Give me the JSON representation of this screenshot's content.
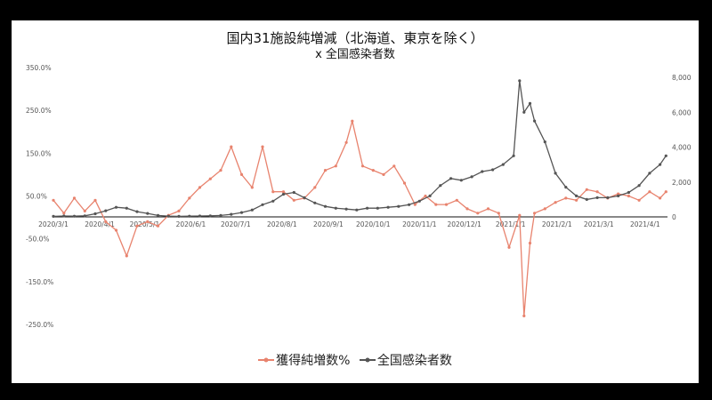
{
  "colors": {
    "series1": "#E8836E",
    "series2": "#555555",
    "background": "#000000",
    "panel": "#ffffff"
  },
  "chart_data": {
    "type": "line",
    "title": "国内31施設純増減（北海道、東京を除く）",
    "subtitle": "x 全国感染者数",
    "x_ticks": [
      "2020/3/1",
      "2020/4/1",
      "2020/5/1",
      "2020/6/1",
      "2020/7/1",
      "2020/8/1",
      "2020/9/1",
      "2020/10/1",
      "2020/11/1",
      "2020/12/1",
      "2021/1/1",
      "2021/2/1",
      "2021/3/1",
      "2021/4/1"
    ],
    "y_left_ticks": [
      "350.0%",
      "250.0%",
      "150.0%",
      "50.0%",
      "-50.0%",
      "-150.0%",
      "-250.0%"
    ],
    "y_right_ticks": [
      "8,000",
      "6,000",
      "4,000",
      "2,000",
      "0"
    ],
    "y_left_range": [
      -250,
      350
    ],
    "y_right_range": [
      0,
      8000
    ],
    "grid": false,
    "legend_position": "bottom",
    "series": [
      {
        "name": "獲得純増数%",
        "axis": "left",
        "points": [
          [
            "2020/3/1",
            40
          ],
          [
            "2020/3/8",
            10
          ],
          [
            "2020/3/15",
            45
          ],
          [
            "2020/3/22",
            15
          ],
          [
            "2020/3/29",
            40
          ],
          [
            "2020/4/5",
            -10
          ],
          [
            "2020/4/12",
            -30
          ],
          [
            "2020/4/19",
            -90
          ],
          [
            "2020/4/26",
            -20
          ],
          [
            "2020/5/3",
            -10
          ],
          [
            "2020/5/10",
            -20
          ],
          [
            "2020/5/17",
            5
          ],
          [
            "2020/5/24",
            15
          ],
          [
            "2020/5/31",
            45
          ],
          [
            "2020/6/7",
            70
          ],
          [
            "2020/6/14",
            90
          ],
          [
            "2020/6/21",
            110
          ],
          [
            "2020/6/28",
            165
          ],
          [
            "2020/7/5",
            100
          ],
          [
            "2020/7/12",
            70
          ],
          [
            "2020/7/19",
            165
          ],
          [
            "2020/7/26",
            60
          ],
          [
            "2020/8/2",
            60
          ],
          [
            "2020/8/9",
            40
          ],
          [
            "2020/8/16",
            45
          ],
          [
            "2020/8/23",
            70
          ],
          [
            "2020/8/30",
            110
          ],
          [
            "2020/9/6",
            120
          ],
          [
            "2020/9/13",
            175
          ],
          [
            "2020/9/17",
            225
          ],
          [
            "2020/9/24",
            120
          ],
          [
            "2020/10/1",
            110
          ],
          [
            "2020/10/8",
            100
          ],
          [
            "2020/10/15",
            120
          ],
          [
            "2020/10/22",
            80
          ],
          [
            "2020/10/29",
            30
          ],
          [
            "2020/11/5",
            50
          ],
          [
            "2020/11/12",
            30
          ],
          [
            "2020/11/19",
            30
          ],
          [
            "2020/11/26",
            40
          ],
          [
            "2020/12/3",
            20
          ],
          [
            "2020/12/10",
            10
          ],
          [
            "2020/12/17",
            20
          ],
          [
            "2020/12/24",
            10
          ],
          [
            "2020/12/31",
            -70
          ],
          [
            "2021/1/7",
            5
          ],
          [
            "2021/1/10",
            -230
          ],
          [
            "2021/1/14",
            -60
          ],
          [
            "2021/1/17",
            10
          ],
          [
            "2021/1/24",
            20
          ],
          [
            "2021/1/31",
            35
          ],
          [
            "2021/2/7",
            45
          ],
          [
            "2021/2/14",
            40
          ],
          [
            "2021/2/21",
            65
          ],
          [
            "2021/2/28",
            60
          ],
          [
            "2021/3/7",
            45
          ],
          [
            "2021/3/14",
            55
          ],
          [
            "2021/3/21",
            50
          ],
          [
            "2021/3/28",
            40
          ],
          [
            "2021/4/4",
            60
          ],
          [
            "2021/4/11",
            45
          ],
          [
            "2021/4/15",
            60
          ]
        ]
      },
      {
        "name": "全国感染者数",
        "axis": "right",
        "points": [
          [
            "2020/3/1",
            30
          ],
          [
            "2020/3/8",
            50
          ],
          [
            "2020/3/15",
            40
          ],
          [
            "2020/3/22",
            60
          ],
          [
            "2020/3/29",
            180
          ],
          [
            "2020/4/5",
            350
          ],
          [
            "2020/4/12",
            550
          ],
          [
            "2020/4/19",
            500
          ],
          [
            "2020/4/26",
            300
          ],
          [
            "2020/5/3",
            200
          ],
          [
            "2020/5/10",
            80
          ],
          [
            "2020/5/17",
            40
          ],
          [
            "2020/5/24",
            30
          ],
          [
            "2020/5/31",
            40
          ],
          [
            "2020/6/7",
            50
          ],
          [
            "2020/6/14",
            60
          ],
          [
            "2020/6/21",
            80
          ],
          [
            "2020/6/28",
            150
          ],
          [
            "2020/7/5",
            250
          ],
          [
            "2020/7/12",
            400
          ],
          [
            "2020/7/19",
            700
          ],
          [
            "2020/7/26",
            900
          ],
          [
            "2020/8/2",
            1300
          ],
          [
            "2020/8/9",
            1400
          ],
          [
            "2020/8/16",
            1100
          ],
          [
            "2020/8/23",
            800
          ],
          [
            "2020/8/30",
            600
          ],
          [
            "2020/9/6",
            500
          ],
          [
            "2020/9/13",
            450
          ],
          [
            "2020/9/20",
            400
          ],
          [
            "2020/9/27",
            500
          ],
          [
            "2020/10/4",
            500
          ],
          [
            "2020/10/11",
            550
          ],
          [
            "2020/10/18",
            600
          ],
          [
            "2020/10/25",
            700
          ],
          [
            "2020/11/1",
            900
          ],
          [
            "2020/11/8",
            1200
          ],
          [
            "2020/11/15",
            1800
          ],
          [
            "2020/11/22",
            2200
          ],
          [
            "2020/11/29",
            2100
          ],
          [
            "2020/12/6",
            2300
          ],
          [
            "2020/12/13",
            2600
          ],
          [
            "2020/12/20",
            2700
          ],
          [
            "2020/12/27",
            3000
          ],
          [
            "2021/1/3",
            3500
          ],
          [
            "2021/1/7",
            7800
          ],
          [
            "2021/1/10",
            6000
          ],
          [
            "2021/1/14",
            6500
          ],
          [
            "2021/1/17",
            5500
          ],
          [
            "2021/1/24",
            4300
          ],
          [
            "2021/1/31",
            2500
          ],
          [
            "2021/2/7",
            1700
          ],
          [
            "2021/2/14",
            1200
          ],
          [
            "2021/2/21",
            1000
          ],
          [
            "2021/2/28",
            1100
          ],
          [
            "2021/3/7",
            1100
          ],
          [
            "2021/3/14",
            1200
          ],
          [
            "2021/3/21",
            1400
          ],
          [
            "2021/3/28",
            1800
          ],
          [
            "2021/4/4",
            2500
          ],
          [
            "2021/4/11",
            3000
          ],
          [
            "2021/4/15",
            3500
          ]
        ]
      }
    ]
  }
}
